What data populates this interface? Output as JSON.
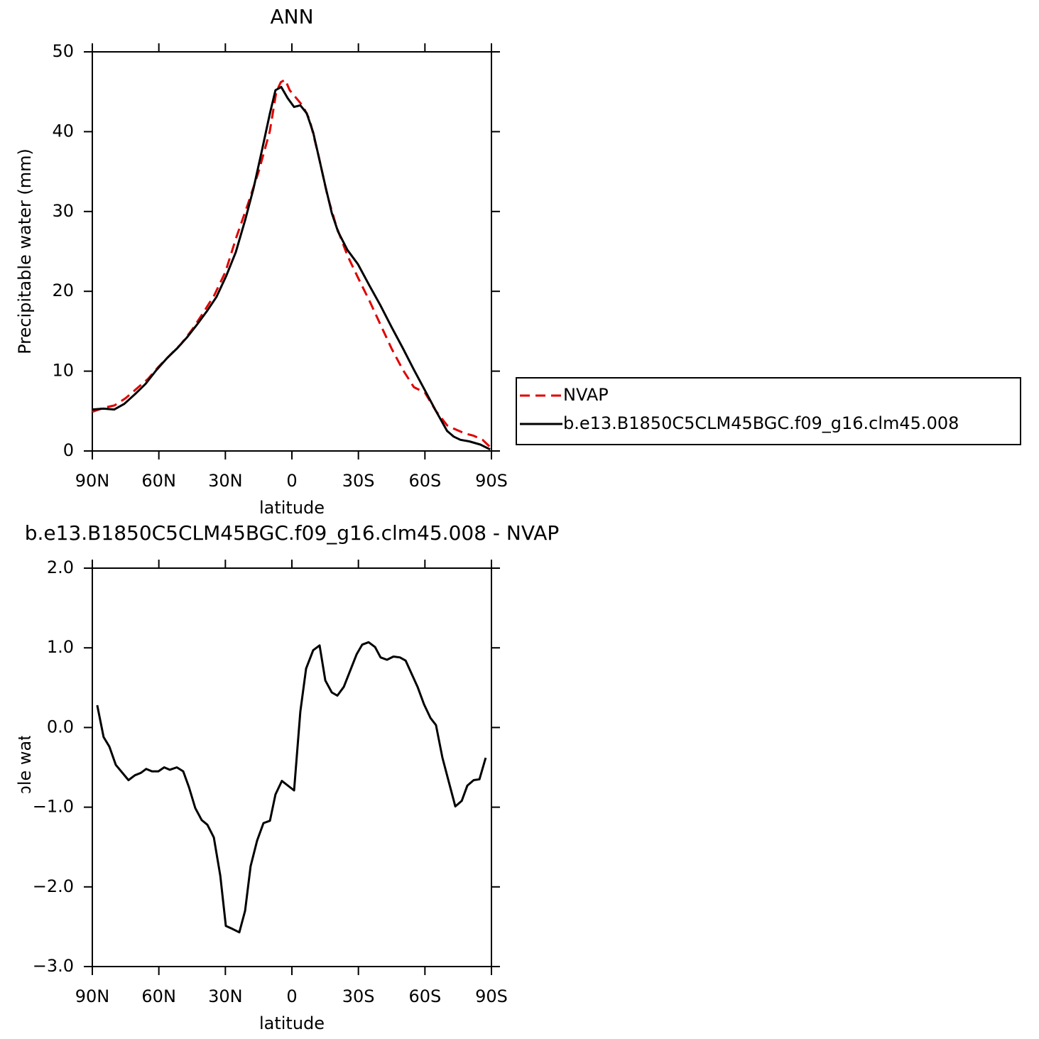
{
  "chart_data": [
    {
      "type": "line",
      "title": "ANN",
      "xlabel": "latitude",
      "ylabel": "Precipitable water (mm)",
      "xlim": [
        90,
        -90
      ],
      "xticks": [
        {
          "value": 90,
          "label": "90N"
        },
        {
          "value": 60,
          "label": "60N"
        },
        {
          "value": 30,
          "label": "30N"
        },
        0,
        {
          "value": -30,
          "label": "30S"
        },
        {
          "value": -60,
          "label": "60S"
        },
        {
          "value": -90,
          "label": "90S"
        }
      ],
      "ylim": [
        0,
        50
      ],
      "yticks": [
        0,
        10,
        20,
        30,
        40,
        50
      ],
      "legend": "right",
      "series": [
        {
          "name": "NVAP",
          "color": "#e00000",
          "line_style": "dashed",
          "x": [
            90,
            85,
            80,
            75,
            70,
            65,
            60,
            55,
            50,
            45,
            40,
            35,
            30,
            25,
            20,
            15,
            10,
            7,
            5,
            3,
            1,
            -2,
            -5,
            -8,
            -12,
            -16,
            -20,
            -25,
            -30,
            -35,
            -40,
            -45,
            -50,
            -55,
            -60,
            -65,
            -70,
            -73,
            -78,
            -82,
            -86,
            -89.4
          ],
          "values": [
            4.9,
            5.4,
            5.7,
            6.6,
            7.8,
            9.0,
            10.6,
            12.0,
            13.4,
            15.2,
            17.3,
            19.5,
            22.4,
            26.8,
            30.8,
            35.0,
            40.0,
            45.0,
            46.2,
            46.5,
            45.2,
            44.2,
            43.2,
            41.5,
            37.0,
            32.0,
            28.2,
            24.5,
            21.6,
            18.8,
            15.8,
            12.8,
            10.2,
            8.0,
            7.3,
            5.0,
            3.2,
            2.8,
            2.2,
            1.9,
            1.4,
            0.5
          ]
        },
        {
          "name": "b.e13.B1850C5CLM45BGC.f09_g16.clm45.008",
          "color": "#000000",
          "line_style": "solid",
          "x": [
            90,
            84.9,
            80.1,
            75.6,
            70.8,
            66.0,
            61.2,
            56.4,
            51.6,
            47.4,
            42.6,
            38.1,
            34.0,
            29.5,
            25.3,
            21.1,
            17.3,
            13.4,
            9.9,
            7.4,
            4.8,
            1.9,
            -1.0,
            -3.8,
            -6.7,
            -9.6,
            -12.5,
            -15.1,
            -18.0,
            -20.8,
            -25,
            -29.8,
            -35,
            -40,
            -45,
            -50,
            -55,
            -60,
            -65,
            -70,
            -73,
            -76,
            -80,
            -85,
            -89.4
          ],
          "values": [
            5.2,
            5.3,
            5.2,
            5.9,
            7.1,
            8.4,
            10.1,
            11.6,
            12.9,
            14.2,
            15.9,
            17.6,
            19.3,
            22.0,
            24.9,
            28.9,
            32.9,
            37.8,
            42.3,
            45.2,
            45.6,
            44.2,
            43.1,
            43.3,
            42.3,
            39.9,
            36.4,
            33.2,
            29.8,
            27.5,
            25.2,
            23.4,
            20.7,
            18.2,
            15.5,
            12.9,
            10.2,
            7.6,
            5.0,
            2.5,
            1.8,
            1.4,
            1.2,
            0.8,
            0.2
          ]
        }
      ]
    },
    {
      "type": "line",
      "title": "b.e13.B1850C5CLM45BGC.f09_g16.clm45.008 - NVAP",
      "xlabel": "latitude",
      "ylabel": "Precipitable water (mm)",
      "xlim": [
        90,
        -90
      ],
      "xticks": [
        {
          "value": 90,
          "label": "90N"
        },
        {
          "value": 60,
          "label": "60N"
        },
        {
          "value": 30,
          "label": "30N"
        },
        0,
        {
          "value": -30,
          "label": "30S"
        },
        {
          "value": -60,
          "label": "60S"
        },
        {
          "value": -90,
          "label": "90S"
        }
      ],
      "ylim": [
        -3,
        2
      ],
      "yticks": [
        {
          "value": 2,
          "label": "2.0"
        },
        {
          "value": 1,
          "label": "1.0"
        },
        {
          "value": 0,
          "label": "0.0"
        },
        {
          "value": -1,
          "label": "−1.0"
        },
        {
          "value": -2,
          "label": "−2.0"
        },
        {
          "value": -3,
          "label": "−3.0"
        }
      ],
      "series": [
        {
          "color": "#000000",
          "line_style": "solid",
          "x": [
            87.8,
            84.9,
            82.3,
            79.4,
            73.7,
            70.8,
            68.2,
            65.7,
            63.1,
            60.2,
            57.6,
            55.1,
            51.9,
            49.0,
            46.4,
            43.6,
            40.7,
            38.1,
            35.2,
            32.3,
            29.8,
            26.6,
            23.7,
            21.1,
            18.6,
            15.7,
            12.8,
            9.9,
            7.4,
            4.5,
            -1.0,
            -3.8,
            -6.4,
            -9.6,
            -12.5,
            -15.1,
            -18.0,
            -20.5,
            -23.4,
            -29.2,
            -31.7,
            -34.6,
            -37.5,
            -40.0,
            -42.9,
            -45.8,
            -48.7,
            -51.3,
            -56.7,
            -59.6,
            -62.5,
            -65.0,
            -67.9,
            -73.7,
            -76.6,
            -79.1,
            -82.0,
            -84.6,
            -87.4
          ],
          "values": [
            0.28,
            -0.12,
            -0.24,
            -0.47,
            -0.66,
            -0.6,
            -0.57,
            -0.52,
            -0.55,
            -0.55,
            -0.5,
            -0.53,
            -0.5,
            -0.55,
            -0.75,
            -1.01,
            -1.16,
            -1.22,
            -1.38,
            -1.86,
            -2.49,
            -2.53,
            -2.57,
            -2.3,
            -1.74,
            -1.42,
            -1.2,
            -1.17,
            -0.84,
            -0.67,
            -0.79,
            0.2,
            0.74,
            0.97,
            1.03,
            0.59,
            0.44,
            0.4,
            0.51,
            0.92,
            1.04,
            1.07,
            1.01,
            0.88,
            0.85,
            0.89,
            0.88,
            0.84,
            0.51,
            0.29,
            0.12,
            0.03,
            -0.38,
            -0.99,
            -0.92,
            -0.73,
            -0.66,
            -0.65,
            -0.38
          ]
        }
      ]
    }
  ]
}
